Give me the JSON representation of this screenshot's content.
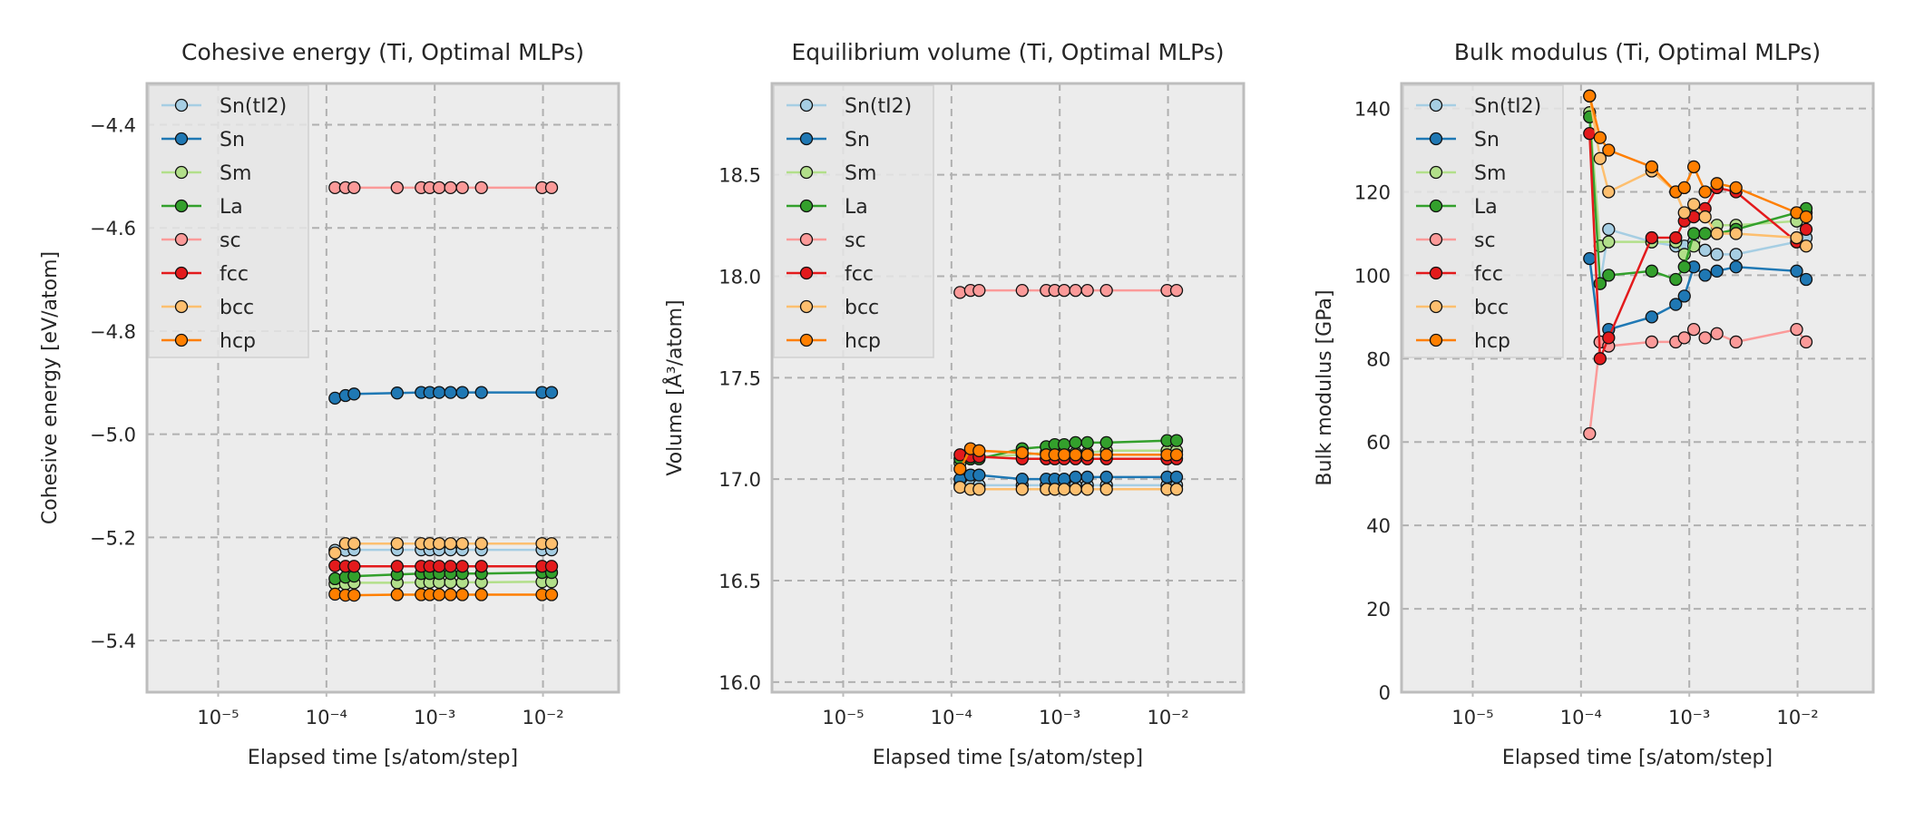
{
  "colors": {
    "axes_bg": "#ececec",
    "spine": "#bdbdbd",
    "grid": "#b0b0b0",
    "text": "#262626",
    "Sn(tI2)": "#a6cee3",
    "Sn": "#1f78b4",
    "Sm": "#b2df8a",
    "La": "#33a02c",
    "sc": "#fb9a99",
    "fcc": "#e31a1c",
    "bcc": "#fdbf6f",
    "hcp": "#ff7f00"
  },
  "chart_data": [
    {
      "type": "line",
      "title": "Cohesive energy (Ti, Optimal MLPs)",
      "xlabel": "Elapsed time [s/atom/step]",
      "ylabel": "Cohesive energy [eV/atom]",
      "xscale": "log",
      "xlim": [
        2.2e-06,
        0.05
      ],
      "ylim": [
        -5.5,
        -4.32
      ],
      "yticks": [
        -5.4,
        -5.2,
        -5.0,
        -4.8,
        -4.6,
        -4.4
      ],
      "ytick_labels": [
        "−5.4",
        "−5.2",
        "−5.0",
        "−4.8",
        "−4.6",
        "−4.4"
      ],
      "xticks": [
        1e-05,
        0.0001,
        0.001,
        0.01
      ],
      "xtick_labels": [
        "10⁻⁵",
        "10⁻⁴",
        "10⁻³",
        "10⁻²"
      ],
      "grid": true,
      "legend": "top-left",
      "x": [
        0.00012,
        0.00015,
        0.00018,
        0.00045,
        0.00075,
        0.0009,
        0.0011,
        0.0014,
        0.0018,
        0.0027,
        0.0098,
        0.012
      ],
      "series": [
        {
          "name": "Sn(tI2)",
          "values": [
            -5.225,
            -5.225,
            -5.224,
            -5.224,
            -5.224,
            -5.224,
            -5.224,
            -5.224,
            -5.224,
            -5.224,
            -5.224,
            -5.224
          ]
        },
        {
          "name": "Sn",
          "values": [
            -4.93,
            -4.925,
            -4.922,
            -4.92,
            -4.919,
            -4.919,
            -4.919,
            -4.919,
            -4.919,
            -4.919,
            -4.919,
            -4.919
          ]
        },
        {
          "name": "Sm",
          "values": [
            -5.29,
            -5.29,
            -5.288,
            -5.288,
            -5.287,
            -5.287,
            -5.287,
            -5.287,
            -5.287,
            -5.287,
            -5.286,
            -5.286
          ]
        },
        {
          "name": "La",
          "values": [
            -5.28,
            -5.277,
            -5.275,
            -5.272,
            -5.27,
            -5.27,
            -5.27,
            -5.27,
            -5.27,
            -5.27,
            -5.268,
            -5.268
          ]
        },
        {
          "name": "sc",
          "values": [
            -4.522,
            -4.522,
            -4.522,
            -4.522,
            -4.522,
            -4.522,
            -4.522,
            -4.522,
            -4.522,
            -4.522,
            -4.522,
            -4.522
          ]
        },
        {
          "name": "fcc",
          "values": [
            -5.255,
            -5.256,
            -5.256,
            -5.256,
            -5.256,
            -5.256,
            -5.256,
            -5.256,
            -5.256,
            -5.256,
            -5.256,
            -5.256
          ]
        },
        {
          "name": "bcc",
          "values": [
            -5.23,
            -5.212,
            -5.212,
            -5.212,
            -5.212,
            -5.212,
            -5.212,
            -5.212,
            -5.212,
            -5.212,
            -5.212,
            -5.212
          ]
        },
        {
          "name": "hcp",
          "values": [
            -5.31,
            -5.312,
            -5.312,
            -5.311,
            -5.311,
            -5.311,
            -5.311,
            -5.311,
            -5.311,
            -5.311,
            -5.311,
            -5.311
          ]
        }
      ]
    },
    {
      "type": "line",
      "title": "Equilibrium volume (Ti, Optimal MLPs)",
      "xlabel": "Elapsed time [s/atom/step]",
      "ylabel": "Volume [Å³/atom]",
      "xscale": "log",
      "xlim": [
        2.2e-06,
        0.05
      ],
      "ylim": [
        15.95,
        18.95
      ],
      "yticks": [
        16.0,
        16.5,
        17.0,
        17.5,
        18.0,
        18.5
      ],
      "ytick_labels": [
        "16.0",
        "16.5",
        "17.0",
        "17.5",
        "18.0",
        "18.5"
      ],
      "xticks": [
        1e-05,
        0.0001,
        0.001,
        0.01
      ],
      "xtick_labels": [
        "10⁻⁵",
        "10⁻⁴",
        "10⁻³",
        "10⁻²"
      ],
      "grid": true,
      "legend": "top-left",
      "x": [
        0.00012,
        0.00015,
        0.00018,
        0.00045,
        0.00075,
        0.0009,
        0.0011,
        0.0014,
        0.0018,
        0.0027,
        0.0098,
        0.012
      ],
      "series": [
        {
          "name": "Sn(tI2)",
          "values": [
            16.97,
            16.97,
            16.97,
            16.97,
            16.97,
            16.97,
            16.97,
            16.97,
            16.97,
            16.97,
            16.97,
            16.97
          ]
        },
        {
          "name": "Sn",
          "values": [
            17.0,
            17.02,
            17.02,
            17.0,
            17.0,
            17.0,
            17.0,
            17.01,
            17.01,
            17.01,
            17.01,
            17.01
          ]
        },
        {
          "name": "Sm",
          "values": [
            17.08,
            17.1,
            17.11,
            17.12,
            17.13,
            17.13,
            17.13,
            17.13,
            17.13,
            17.14,
            17.14,
            17.14
          ]
        },
        {
          "name": "La",
          "values": [
            17.1,
            17.1,
            17.1,
            17.15,
            17.16,
            17.17,
            17.17,
            17.18,
            17.18,
            17.18,
            17.19,
            17.19
          ]
        },
        {
          "name": "sc",
          "values": [
            17.92,
            17.93,
            17.93,
            17.93,
            17.93,
            17.93,
            17.93,
            17.93,
            17.93,
            17.93,
            17.93,
            17.93
          ]
        },
        {
          "name": "fcc",
          "values": [
            17.12,
            17.11,
            17.11,
            17.1,
            17.1,
            17.1,
            17.1,
            17.1,
            17.1,
            17.1,
            17.1,
            17.1
          ]
        },
        {
          "name": "bcc",
          "values": [
            16.96,
            16.95,
            16.95,
            16.95,
            16.95,
            16.95,
            16.95,
            16.95,
            16.95,
            16.95,
            16.95,
            16.95
          ]
        },
        {
          "name": "hcp",
          "values": [
            17.05,
            17.15,
            17.14,
            17.13,
            17.12,
            17.12,
            17.12,
            17.12,
            17.12,
            17.12,
            17.12,
            17.12
          ]
        }
      ]
    },
    {
      "type": "line",
      "title": "Bulk modulus (Ti, Optimal MLPs)",
      "xlabel": "Elapsed time [s/atom/step]",
      "ylabel": "Bulk modulus [GPa]",
      "xscale": "log",
      "xlim": [
        2.2e-06,
        0.05
      ],
      "ylim": [
        0,
        146
      ],
      "yticks": [
        0,
        20,
        40,
        60,
        80,
        100,
        120,
        140
      ],
      "ytick_labels": [
        "0",
        "20",
        "40",
        "60",
        "80",
        "100",
        "120",
        "140"
      ],
      "xticks": [
        1e-05,
        0.0001,
        0.001,
        0.01
      ],
      "xtick_labels": [
        "10⁻⁵",
        "10⁻⁴",
        "10⁻³",
        "10⁻²"
      ],
      "grid": true,
      "legend": "top-left",
      "x": [
        0.00012,
        0.00015,
        0.00018,
        0.00045,
        0.00075,
        0.0009,
        0.0011,
        0.0014,
        0.0018,
        0.0027,
        0.0098,
        0.012
      ],
      "series": [
        {
          "name": "Sn(tI2)",
          "values": [
            138,
            98,
            111,
            108,
            107,
            107,
            108,
            106,
            105,
            105,
            108,
            109
          ]
        },
        {
          "name": "Sn",
          "values": [
            104,
            84,
            87,
            90,
            93,
            95,
            102,
            100,
            101,
            102,
            101,
            99
          ]
        },
        {
          "name": "Sm",
          "values": [
            139,
            107,
            108,
            108,
            108,
            105,
            107,
            110,
            112,
            112,
            113,
            115
          ]
        },
        {
          "name": "La",
          "values": [
            138,
            98,
            100,
            101,
            99,
            102,
            110,
            110,
            110,
            111,
            115,
            116
          ]
        },
        {
          "name": "sc",
          "values": [
            62,
            84,
            83,
            84,
            84,
            85,
            87,
            85,
            86,
            84,
            87,
            84
          ]
        },
        {
          "name": "fcc",
          "values": [
            134,
            80,
            85,
            109,
            109,
            113,
            114,
            116,
            121,
            120,
            108,
            111
          ]
        },
        {
          "name": "bcc",
          "values": [
            143,
            128,
            120,
            125,
            120,
            115,
            117,
            114,
            110,
            110,
            109,
            107
          ]
        },
        {
          "name": "hcp",
          "values": [
            143,
            133,
            130,
            126,
            120,
            121,
            126,
            120,
            122,
            121,
            115,
            114
          ]
        }
      ]
    }
  ]
}
